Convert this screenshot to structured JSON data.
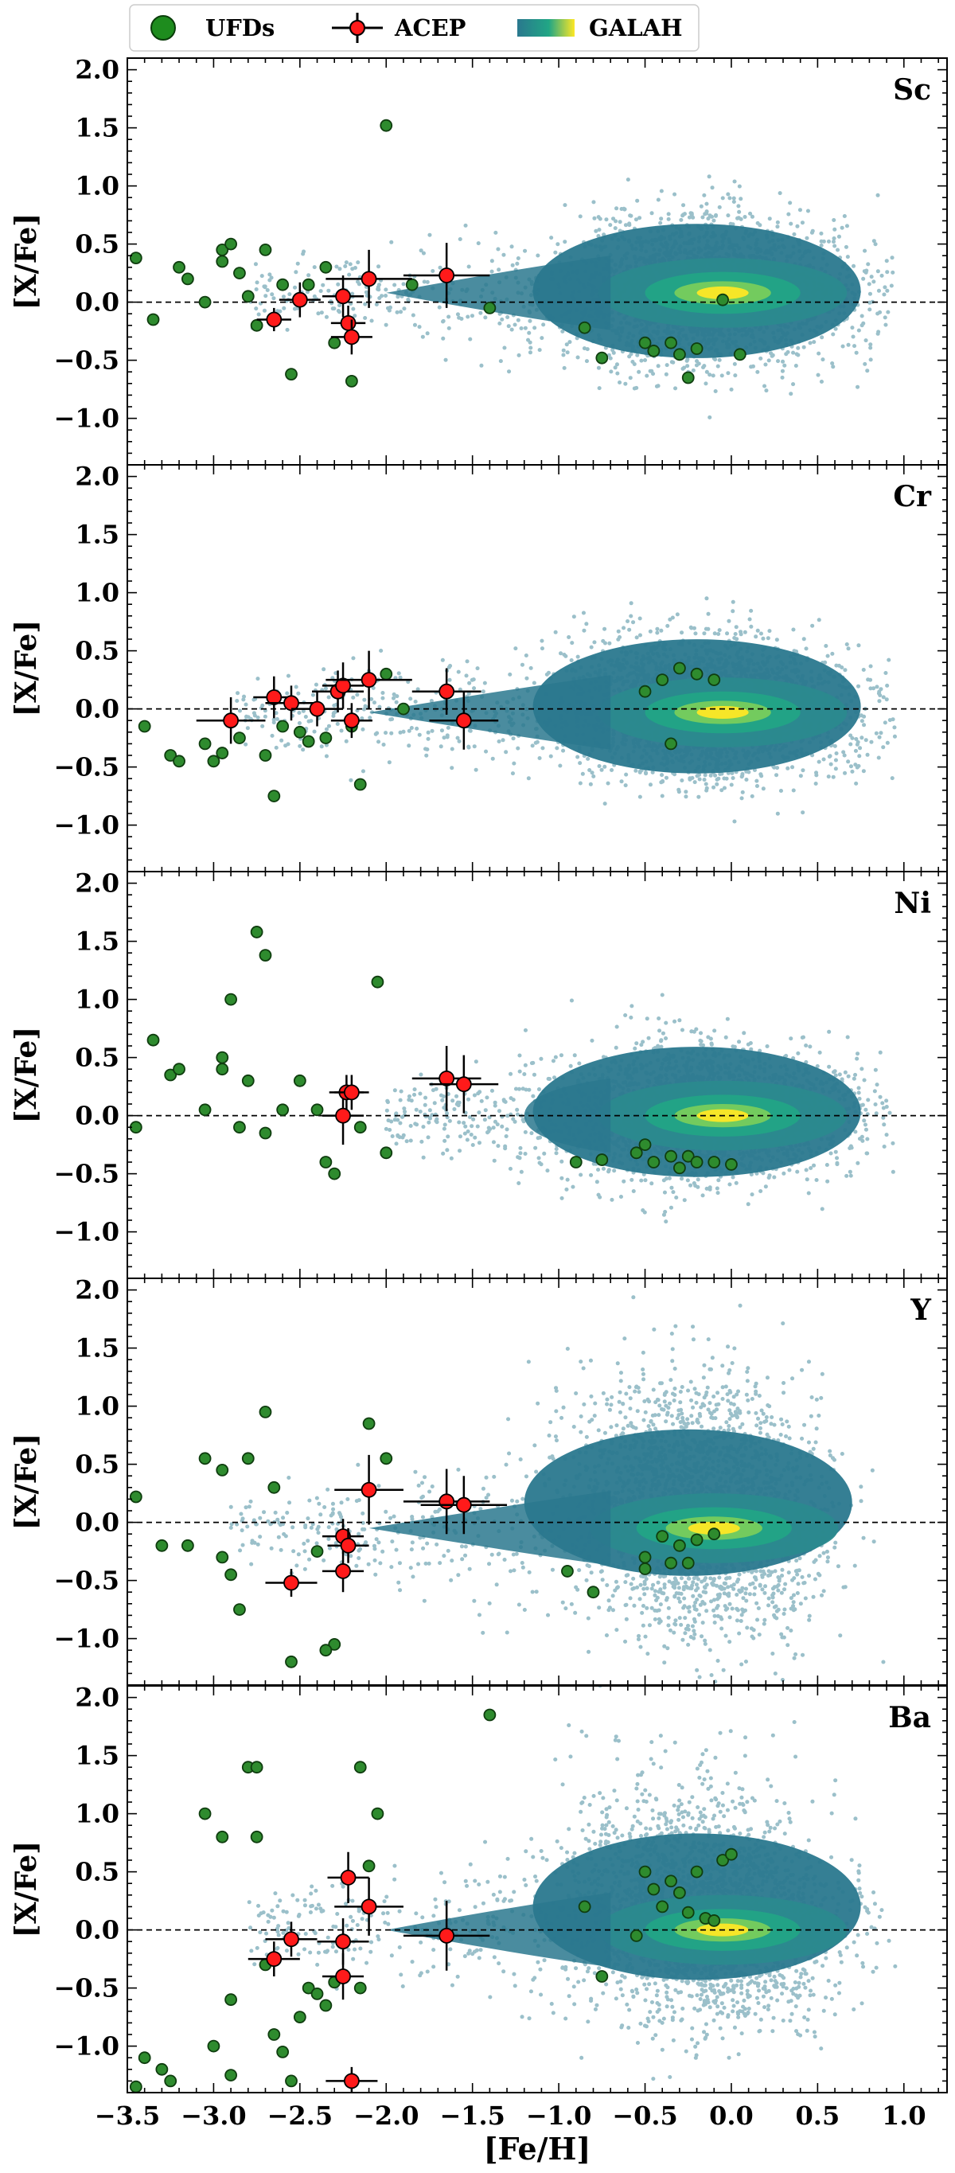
{
  "legend": {
    "items": [
      {
        "label": "UFDs",
        "kind": "ufd-marker"
      },
      {
        "label": "ACEP",
        "kind": "acep-marker"
      },
      {
        "label": "GALAH",
        "kind": "galah-gradient"
      }
    ]
  },
  "colors": {
    "ufd_fill": "#2e8b2e",
    "ufd_edge": "#0f3d0f",
    "acep_fill": "#ff1a1a",
    "acep_edge": "#000000",
    "galah_low": "#2a788e",
    "galah_mid": "#21a685",
    "galah_high": "#fde725",
    "zero_line": "#000000"
  },
  "chart_data": [
    {
      "type": "scatter",
      "element_label": "Sc",
      "xlabel": "",
      "ylabel": "[X/Fe]",
      "xlim": [
        -3.5,
        1.25
      ],
      "ylim": [
        -1.4,
        2.1
      ],
      "yticks": [
        "2.0",
        "1.5",
        "1.0",
        "0.5",
        "0.0",
        "−0.5",
        "−1.0"
      ],
      "reference_line_y": 0.0,
      "galah_density": {
        "peak": [
          -0.05,
          0.08
        ],
        "core_halfwidth": [
          0.75,
          0.18
        ],
        "head": [
          -0.25,
          0.12
        ],
        "metal_poor_tail_to": -2.8,
        "spread": 0.45
      },
      "acep": [
        {
          "x": -2.65,
          "y": -0.15,
          "xerr": 0.1,
          "yerr": 0.1
        },
        {
          "x": -2.5,
          "y": 0.02,
          "xerr": 0.12,
          "yerr": 0.15
        },
        {
          "x": -2.25,
          "y": 0.05,
          "xerr": 0.12,
          "yerr": 0.18
        },
        {
          "x": -2.22,
          "y": -0.18,
          "xerr": 0.1,
          "yerr": 0.15
        },
        {
          "x": -2.2,
          "y": -0.3,
          "xerr": 0.12,
          "yerr": 0.15
        },
        {
          "x": -2.1,
          "y": 0.2,
          "xerr": 0.25,
          "yerr": 0.25
        },
        {
          "x": -1.65,
          "y": 0.23,
          "xerr": 0.25,
          "yerr": 0.28
        }
      ],
      "ufds": [
        {
          "x": -3.45,
          "y": 0.38
        },
        {
          "x": -3.35,
          "y": -0.15
        },
        {
          "x": -3.2,
          "y": 0.3
        },
        {
          "x": -3.15,
          "y": 0.2
        },
        {
          "x": -3.05,
          "y": 0.0
        },
        {
          "x": -2.95,
          "y": 0.45
        },
        {
          "x": -2.95,
          "y": 0.35
        },
        {
          "x": -2.9,
          "y": 0.5
        },
        {
          "x": -2.85,
          "y": 0.25
        },
        {
          "x": -2.8,
          "y": 0.05
        },
        {
          "x": -2.75,
          "y": -0.2
        },
        {
          "x": -2.7,
          "y": 0.45
        },
        {
          "x": -2.6,
          "y": 0.15
        },
        {
          "x": -2.55,
          "y": -0.62
        },
        {
          "x": -2.45,
          "y": 0.15
        },
        {
          "x": -2.35,
          "y": 0.3
        },
        {
          "x": -2.3,
          "y": -0.35
        },
        {
          "x": -2.2,
          "y": -0.68
        },
        {
          "x": -2.0,
          "y": 1.52
        },
        {
          "x": -1.85,
          "y": 0.15
        },
        {
          "x": -1.4,
          "y": -0.05
        },
        {
          "x": -0.85,
          "y": -0.22
        },
        {
          "x": -0.75,
          "y": -0.48
        },
        {
          "x": -0.5,
          "y": -0.35
        },
        {
          "x": -0.45,
          "y": -0.42
        },
        {
          "x": -0.35,
          "y": -0.35
        },
        {
          "x": -0.3,
          "y": -0.45
        },
        {
          "x": -0.25,
          "y": -0.65
        },
        {
          "x": -0.2,
          "y": -0.4
        },
        {
          "x": -0.05,
          "y": 0.02
        },
        {
          "x": 0.05,
          "y": -0.45
        }
      ]
    },
    {
      "type": "scatter",
      "element_label": "Cr",
      "xlabel": "",
      "ylabel": "[X/Fe]",
      "xlim": [
        -3.5,
        1.25
      ],
      "ylim": [
        -1.4,
        2.1
      ],
      "yticks": [
        "2.0",
        "1.5",
        "1.0",
        "0.5",
        "0.0",
        "−0.5",
        "−1.0"
      ],
      "reference_line_y": 0.0,
      "galah_density": {
        "peak": [
          -0.05,
          -0.03
        ],
        "core_halfwidth": [
          0.75,
          0.15
        ],
        "head": [
          -0.25,
          0.1
        ],
        "metal_poor_tail_to": -2.9,
        "spread": 0.45
      },
      "acep": [
        {
          "x": -2.9,
          "y": -0.1,
          "xerr": 0.2,
          "yerr": 0.2
        },
        {
          "x": -2.65,
          "y": 0.1,
          "xerr": 0.12,
          "yerr": 0.18
        },
        {
          "x": -2.55,
          "y": 0.05,
          "xerr": 0.15,
          "yerr": 0.15
        },
        {
          "x": -2.4,
          "y": 0.0,
          "xerr": 0.15,
          "yerr": 0.15
        },
        {
          "x": -2.28,
          "y": 0.15,
          "xerr": 0.15,
          "yerr": 0.18
        },
        {
          "x": -2.25,
          "y": 0.2,
          "xerr": 0.12,
          "yerr": 0.2
        },
        {
          "x": -2.2,
          "y": -0.1,
          "xerr": 0.12,
          "yerr": 0.15
        },
        {
          "x": -2.1,
          "y": 0.25,
          "xerr": 0.25,
          "yerr": 0.25
        },
        {
          "x": -1.65,
          "y": 0.15,
          "xerr": 0.2,
          "yerr": 0.2
        },
        {
          "x": -1.55,
          "y": -0.1,
          "xerr": 0.2,
          "yerr": 0.25
        }
      ],
      "ufds": [
        {
          "x": -3.4,
          "y": -0.15
        },
        {
          "x": -3.25,
          "y": -0.4
        },
        {
          "x": -3.2,
          "y": -0.45
        },
        {
          "x": -3.05,
          "y": -0.3
        },
        {
          "x": -3.0,
          "y": -0.45
        },
        {
          "x": -2.95,
          "y": -0.38
        },
        {
          "x": -2.85,
          "y": -0.25
        },
        {
          "x": -2.7,
          "y": -0.4
        },
        {
          "x": -2.65,
          "y": -0.75
        },
        {
          "x": -2.6,
          "y": -0.15
        },
        {
          "x": -2.5,
          "y": -0.2
        },
        {
          "x": -2.45,
          "y": -0.28
        },
        {
          "x": -2.35,
          "y": -0.25
        },
        {
          "x": -2.2,
          "y": -0.15
        },
        {
          "x": -2.15,
          "y": -0.65
        },
        {
          "x": -2.0,
          "y": 0.3
        },
        {
          "x": -1.9,
          "y": 0.0
        },
        {
          "x": -0.5,
          "y": 0.15
        },
        {
          "x": -0.4,
          "y": 0.25
        },
        {
          "x": -0.3,
          "y": 0.35
        },
        {
          "x": -0.35,
          "y": -0.3
        },
        {
          "x": -0.2,
          "y": 0.3
        },
        {
          "x": -0.1,
          "y": 0.25
        }
      ]
    },
    {
      "type": "scatter",
      "element_label": "Ni",
      "xlabel": "",
      "ylabel": "[X/Fe]",
      "xlim": [
        -3.5,
        1.25
      ],
      "ylim": [
        -1.4,
        2.1
      ],
      "yticks": [
        "2.0",
        "1.5",
        "1.0",
        "0.5",
        "0.0",
        "−0.5",
        "−1.0"
      ],
      "reference_line_y": 0.0,
      "galah_density": {
        "peak": [
          -0.05,
          0.0
        ],
        "core_halfwidth": [
          0.75,
          0.14
        ],
        "head": [
          -0.25,
          0.08
        ],
        "metal_poor_tail_to": -2.0,
        "spread": 0.4
      },
      "acep": [
        {
          "x": -2.25,
          "y": 0.0,
          "xerr": 0.12,
          "yerr": 0.25
        },
        {
          "x": -2.23,
          "y": 0.2,
          "xerr": 0.1,
          "yerr": 0.15
        },
        {
          "x": -2.2,
          "y": 0.2,
          "xerr": 0.1,
          "yerr": 0.15
        },
        {
          "x": -1.65,
          "y": 0.32,
          "xerr": 0.2,
          "yerr": 0.28
        },
        {
          "x": -1.55,
          "y": 0.27,
          "xerr": 0.2,
          "yerr": 0.25
        }
      ],
      "ufds": [
        {
          "x": -3.45,
          "y": -0.1
        },
        {
          "x": -3.35,
          "y": 0.65
        },
        {
          "x": -3.25,
          "y": 0.35
        },
        {
          "x": -3.2,
          "y": 0.4
        },
        {
          "x": -3.05,
          "y": 0.05
        },
        {
          "x": -2.95,
          "y": 0.5
        },
        {
          "x": -2.95,
          "y": 0.4
        },
        {
          "x": -2.9,
          "y": 1.0
        },
        {
          "x": -2.85,
          "y": -0.1
        },
        {
          "x": -2.8,
          "y": 0.3
        },
        {
          "x": -2.75,
          "y": 1.58
        },
        {
          "x": -2.7,
          "y": 1.38
        },
        {
          "x": -2.7,
          "y": -0.15
        },
        {
          "x": -2.6,
          "y": 0.05
        },
        {
          "x": -2.5,
          "y": 0.3
        },
        {
          "x": -2.4,
          "y": 0.05
        },
        {
          "x": -2.35,
          "y": -0.4
        },
        {
          "x": -2.3,
          "y": -0.5
        },
        {
          "x": -2.15,
          "y": -0.1
        },
        {
          "x": -2.05,
          "y": 1.15
        },
        {
          "x": -2.0,
          "y": -0.32
        },
        {
          "x": -0.9,
          "y": -0.4
        },
        {
          "x": -0.75,
          "y": -0.38
        },
        {
          "x": -0.55,
          "y": -0.32
        },
        {
          "x": -0.5,
          "y": -0.25
        },
        {
          "x": -0.45,
          "y": -0.4
        },
        {
          "x": -0.35,
          "y": -0.35
        },
        {
          "x": -0.3,
          "y": -0.45
        },
        {
          "x": -0.25,
          "y": -0.35
        },
        {
          "x": -0.2,
          "y": -0.4
        },
        {
          "x": -0.1,
          "y": -0.4
        },
        {
          "x": 0.0,
          "y": -0.42
        }
      ]
    },
    {
      "type": "scatter",
      "element_label": "Y",
      "xlabel": "",
      "ylabel": "[X/Fe]",
      "xlim": [
        -3.5,
        1.25
      ],
      "ylim": [
        -1.4,
        2.1
      ],
      "yticks": [
        "2.0",
        "1.5",
        "1.0",
        "0.5",
        "0.0",
        "−0.5",
        "−1.0"
      ],
      "reference_line_y": 0.0,
      "galah_density": {
        "peak": [
          -0.1,
          -0.05
        ],
        "core_halfwidth": [
          0.6,
          0.35
        ],
        "head": [
          -0.3,
          0.5
        ],
        "metal_poor_tail_to": -2.9,
        "spread": 0.6
      },
      "acep": [
        {
          "x": -2.55,
          "y": -0.52,
          "xerr": 0.15,
          "yerr": 0.12
        },
        {
          "x": -2.25,
          "y": -0.12,
          "xerr": 0.12,
          "yerr": 0.15
        },
        {
          "x": -2.22,
          "y": -0.2,
          "xerr": 0.12,
          "yerr": 0.15
        },
        {
          "x": -2.25,
          "y": -0.42,
          "xerr": 0.12,
          "yerr": 0.18
        },
        {
          "x": -2.1,
          "y": 0.28,
          "xerr": 0.2,
          "yerr": 0.3
        },
        {
          "x": -1.65,
          "y": 0.18,
          "xerr": 0.25,
          "yerr": 0.28
        },
        {
          "x": -1.55,
          "y": 0.15,
          "xerr": 0.25,
          "yerr": 0.25
        }
      ],
      "ufds": [
        {
          "x": -3.45,
          "y": 0.22
        },
        {
          "x": -3.3,
          "y": -0.2
        },
        {
          "x": -3.15,
          "y": -0.2
        },
        {
          "x": -3.05,
          "y": 0.55
        },
        {
          "x": -2.95,
          "y": 0.45
        },
        {
          "x": -2.95,
          "y": -0.3
        },
        {
          "x": -2.9,
          "y": -0.45
        },
        {
          "x": -2.85,
          "y": -0.75
        },
        {
          "x": -2.8,
          "y": 0.55
        },
        {
          "x": -2.7,
          "y": 0.95
        },
        {
          "x": -2.65,
          "y": 0.3
        },
        {
          "x": -2.55,
          "y": -1.2
        },
        {
          "x": -2.4,
          "y": -0.25
        },
        {
          "x": -2.3,
          "y": -1.05
        },
        {
          "x": -2.35,
          "y": -1.1
        },
        {
          "x": -2.1,
          "y": 0.85
        },
        {
          "x": -2.0,
          "y": 0.55
        },
        {
          "x": -0.95,
          "y": -0.42
        },
        {
          "x": -0.8,
          "y": -0.6
        },
        {
          "x": -0.5,
          "y": -0.3
        },
        {
          "x": -0.5,
          "y": -0.4
        },
        {
          "x": -0.4,
          "y": -0.12
        },
        {
          "x": -0.35,
          "y": -0.35
        },
        {
          "x": -0.3,
          "y": -0.2
        },
        {
          "x": -0.25,
          "y": -0.35
        },
        {
          "x": -0.2,
          "y": -0.15
        },
        {
          "x": -0.1,
          "y": -0.1
        }
      ]
    },
    {
      "type": "scatter",
      "element_label": "Ba",
      "xlabel": "[Fe/H]",
      "ylabel": "[X/Fe]",
      "xlim": [
        -3.5,
        1.25
      ],
      "ylim": [
        -1.4,
        2.1
      ],
      "xticks": [
        "−3.5",
        "−3.0",
        "−2.5",
        "−2.0",
        "−1.5",
        "−1.0",
        "−0.5",
        "0.0",
        "0.5",
        "1.0"
      ],
      "yticks": [
        "2.0",
        "1.5",
        "1.0",
        "0.5",
        "0.0",
        "−0.5",
        "−1.0"
      ],
      "reference_line_y": 0.0,
      "galah_density": {
        "peak": [
          -0.05,
          0.0
        ],
        "core_halfwidth": [
          0.65,
          0.28
        ],
        "head": [
          -0.3,
          0.5
        ],
        "metal_poor_tail_to": -2.8,
        "spread": 0.6
      },
      "acep": [
        {
          "x": -2.65,
          "y": -0.25,
          "xerr": 0.15,
          "yerr": 0.15
        },
        {
          "x": -2.55,
          "y": -0.08,
          "xerr": 0.15,
          "yerr": 0.15
        },
        {
          "x": -2.25,
          "y": -0.1,
          "xerr": 0.15,
          "yerr": 0.2
        },
        {
          "x": -2.25,
          "y": -0.4,
          "xerr": 0.12,
          "yerr": 0.2
        },
        {
          "x": -2.22,
          "y": 0.45,
          "xerr": 0.12,
          "yerr": 0.22
        },
        {
          "x": -2.1,
          "y": 0.2,
          "xerr": 0.2,
          "yerr": 0.25
        },
        {
          "x": -2.2,
          "y": -1.3,
          "xerr": 0.15,
          "yerr": 0.12
        },
        {
          "x": -1.65,
          "y": -0.05,
          "xerr": 0.25,
          "yerr": 0.3
        }
      ],
      "ufds": [
        {
          "x": -3.45,
          "y": -1.35
        },
        {
          "x": -3.4,
          "y": -1.1
        },
        {
          "x": -3.3,
          "y": -1.2
        },
        {
          "x": -3.25,
          "y": -1.3
        },
        {
          "x": -3.05,
          "y": 1.0
        },
        {
          "x": -3.0,
          "y": -1.0
        },
        {
          "x": -2.95,
          "y": 0.8
        },
        {
          "x": -2.9,
          "y": -0.6
        },
        {
          "x": -2.9,
          "y": -1.25
        },
        {
          "x": -2.8,
          "y": 1.4
        },
        {
          "x": -2.75,
          "y": 1.4
        },
        {
          "x": -2.75,
          "y": 0.8
        },
        {
          "x": -2.7,
          "y": -0.3
        },
        {
          "x": -2.65,
          "y": -0.9
        },
        {
          "x": -2.6,
          "y": -1.05
        },
        {
          "x": -2.55,
          "y": -1.3
        },
        {
          "x": -2.5,
          "y": -0.75
        },
        {
          "x": -2.45,
          "y": -0.5
        },
        {
          "x": -2.4,
          "y": -0.55
        },
        {
          "x": -2.35,
          "y": -0.65
        },
        {
          "x": -2.3,
          "y": -0.45
        },
        {
          "x": -2.15,
          "y": -0.5
        },
        {
          "x": -2.1,
          "y": 0.55
        },
        {
          "x": -2.05,
          "y": 1.0
        },
        {
          "x": -2.15,
          "y": 1.4
        },
        {
          "x": -1.4,
          "y": 1.85
        },
        {
          "x": -0.85,
          "y": 0.2
        },
        {
          "x": -0.75,
          "y": -0.4
        },
        {
          "x": -0.5,
          "y": 0.5
        },
        {
          "x": -0.45,
          "y": 0.35
        },
        {
          "x": -0.4,
          "y": 0.2
        },
        {
          "x": -0.35,
          "y": 0.42
        },
        {
          "x": -0.3,
          "y": 0.32
        },
        {
          "x": -0.25,
          "y": 0.15
        },
        {
          "x": -0.2,
          "y": 0.5
        },
        {
          "x": -0.15,
          "y": 0.1
        },
        {
          "x": -0.1,
          "y": 0.08
        },
        {
          "x": -0.05,
          "y": 0.6
        },
        {
          "x": 0.0,
          "y": 0.65
        },
        {
          "x": -0.55,
          "y": -0.05
        }
      ]
    }
  ]
}
